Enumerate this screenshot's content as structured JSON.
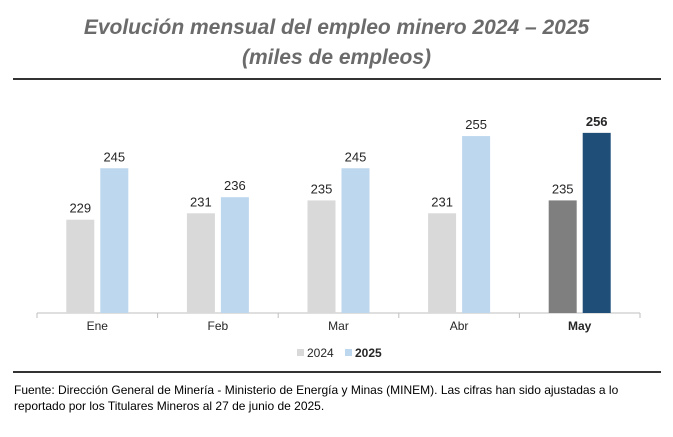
{
  "title_line1": "Evolución mensual del empleo minero 2024 – 2025",
  "title_line2": "(miles de empleos)",
  "source_note": "Fuente: Dirección General de Minería - Ministerio de Energía y Minas (MINEM). Las cifras han sido ajustadas a lo reportado por los Titulares Mineros al 27 de junio de 2025.",
  "chart_data": {
    "type": "bar",
    "categories": [
      "Ene",
      "Feb",
      "Mar",
      "Abr",
      "May"
    ],
    "highlight_category": "May",
    "series": [
      {
        "name": "2024",
        "values": [
          229,
          231,
          235,
          231,
          235
        ],
        "color": "#d9d9d9",
        "highlight_color": "#7f7f7f"
      },
      {
        "name": "2025",
        "values": [
          245,
          236,
          245,
          255,
          256
        ],
        "color": "#bdd7ee",
        "highlight_color": "#1f4e79"
      }
    ],
    "ylim": [
      200,
      260
    ],
    "grid": false,
    "legend_position": "bottom-center",
    "data_labels": true
  }
}
